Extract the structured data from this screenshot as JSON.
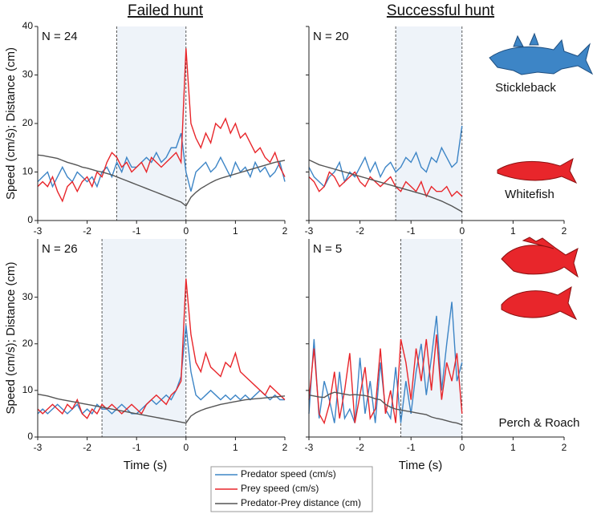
{
  "chart_data": [
    {
      "type": "line",
      "title": "Failed hunt",
      "ylabel": "Speed (cm/s); Distance (cm)",
      "annotation": "N = 24",
      "event_start": -1.4,
      "event_end": 0,
      "xlim": [
        -3,
        2
      ],
      "xticks": [
        -3,
        -2,
        -1,
        0,
        1,
        2
      ],
      "ylim": [
        0,
        40
      ],
      "yticks": [
        0,
        10,
        20,
        30,
        40
      ],
      "ytick_labels": true,
      "x": [
        -3,
        -2.9,
        -2.8,
        -2.7,
        -2.6,
        -2.5,
        -2.4,
        -2.3,
        -2.2,
        -2.1,
        -2,
        -1.9,
        -1.8,
        -1.7,
        -1.6,
        -1.5,
        -1.4,
        -1.3,
        -1.2,
        -1.1,
        -1,
        -0.9,
        -0.8,
        -0.7,
        -0.6,
        -0.5,
        -0.4,
        -0.3,
        -0.2,
        -0.1,
        0,
        0.1,
        0.2,
        0.3,
        0.4,
        0.5,
        0.6,
        0.7,
        0.8,
        0.9,
        1,
        1.1,
        1.2,
        1.3,
        1.4,
        1.5,
        1.6,
        1.7,
        1.8,
        1.9,
        2
      ],
      "series": [
        {
          "name": "Predator speed (cm/s)",
          "color": "#3d85c6",
          "values": [
            8,
            9,
            10,
            7,
            9,
            11,
            9,
            8,
            10,
            9,
            8,
            9,
            7,
            10,
            11,
            9,
            12,
            10,
            13,
            11,
            11,
            12,
            13,
            12,
            14,
            12,
            13,
            15,
            15,
            18,
            10,
            6,
            10,
            11,
            12,
            10,
            11,
            13,
            11,
            9,
            12,
            10,
            11,
            9,
            12,
            10,
            11,
            9,
            10,
            12,
            8
          ]
        },
        {
          "name": "Prey speed (cm/s)",
          "color": "#e8262b",
          "values": [
            7,
            8,
            7,
            9,
            6,
            4,
            7,
            8,
            6,
            8,
            9,
            7,
            10,
            9,
            12,
            14,
            13,
            11,
            12,
            10,
            11,
            12,
            10,
            13,
            12,
            11,
            12,
            13,
            14,
            12,
            35.5,
            20,
            17,
            15,
            18,
            16,
            20,
            19,
            21,
            18,
            20,
            17,
            18,
            16,
            14,
            15,
            13,
            12,
            14,
            11,
            9
          ]
        },
        {
          "name": "Predator-Prey distance (cm)",
          "color": "#555555",
          "values": [
            13.5,
            13.4,
            13.2,
            13,
            12.8,
            12.4,
            12,
            11.7,
            11.4,
            11,
            10.8,
            10.5,
            10.2,
            10,
            9.7,
            9.4,
            9,
            8.6,
            8.2,
            7.8,
            7.4,
            7,
            6.6,
            6.2,
            5.8,
            5.4,
            5,
            4.6,
            4.2,
            3.8,
            3,
            4.8,
            5.8,
            6.6,
            7.2,
            7.8,
            8.3,
            8.7,
            9,
            9.3,
            9.6,
            9.9,
            10.2,
            10.5,
            10.8,
            11.1,
            11.4,
            11.7,
            12,
            12.2,
            12.4
          ]
        }
      ]
    },
    {
      "type": "line",
      "title": "Successful hunt",
      "annotation": "N = 20",
      "side_labels": [
        "Stickleback",
        "Whitefish"
      ],
      "event_start": -1.3,
      "event_end": 0,
      "xlim": [
        -3,
        2
      ],
      "xticks": [
        -3,
        -2,
        -1,
        0,
        1,
        2
      ],
      "ylim": [
        0,
        40
      ],
      "yticks": [
        0,
        10,
        20,
        30,
        40
      ],
      "ytick_labels": false,
      "x": [
        -3,
        -2.9,
        -2.8,
        -2.7,
        -2.6,
        -2.5,
        -2.4,
        -2.3,
        -2.2,
        -2.1,
        -2,
        -1.9,
        -1.8,
        -1.7,
        -1.6,
        -1.5,
        -1.4,
        -1.3,
        -1.2,
        -1.1,
        -1,
        -0.9,
        -0.8,
        -0.7,
        -0.6,
        -0.5,
        -0.4,
        -0.3,
        -0.2,
        -0.1,
        0
      ],
      "series": [
        {
          "color": "#3d85c6",
          "values": [
            11,
            9,
            8,
            7,
            9,
            10,
            12,
            8,
            10,
            9,
            11,
            13,
            10,
            12,
            9,
            11,
            12,
            10,
            11,
            13,
            12,
            14,
            11,
            10,
            13,
            12,
            15,
            13,
            11,
            12,
            19.5
          ]
        },
        {
          "color": "#e8262b",
          "values": [
            9,
            8,
            6,
            7,
            10,
            9,
            7,
            8,
            9,
            10,
            8,
            7,
            9,
            8,
            7,
            8,
            9,
            7,
            6,
            8,
            7,
            6,
            8,
            5,
            7,
            6,
            6,
            7,
            5,
            6,
            5
          ]
        },
        {
          "color": "#555555",
          "values": [
            12.5,
            12,
            11.5,
            11.2,
            10.9,
            10.6,
            10.3,
            10,
            9.7,
            9.4,
            9.1,
            8.8,
            8.5,
            8.2,
            7.9,
            7.6,
            7.3,
            7,
            6.7,
            6.4,
            6.1,
            5.8,
            5.5,
            5.2,
            4.8,
            4.4,
            4,
            3.5,
            3,
            2.4,
            1.8
          ]
        }
      ]
    },
    {
      "type": "line",
      "ylabel": "Speed (cm/s); Distance (cm)",
      "xlabel": "Time (s)",
      "annotation": "N = 26",
      "event_start": -1.7,
      "event_end": 0,
      "xlim": [
        -3,
        2
      ],
      "xticks": [
        -3,
        -2,
        -1,
        0,
        1,
        2
      ],
      "ylim": [
        0,
        42.5
      ],
      "yticks": [
        0,
        10,
        20,
        30
      ],
      "ytick_labels": true,
      "x": [
        -3,
        -2.9,
        -2.8,
        -2.7,
        -2.6,
        -2.5,
        -2.4,
        -2.3,
        -2.2,
        -2.1,
        -2,
        -1.9,
        -1.8,
        -1.7,
        -1.6,
        -1.5,
        -1.4,
        -1.3,
        -1.2,
        -1.1,
        -1,
        -0.9,
        -0.8,
        -0.7,
        -0.6,
        -0.5,
        -0.4,
        -0.3,
        -0.2,
        -0.1,
        0,
        0.1,
        0.2,
        0.3,
        0.4,
        0.5,
        0.6,
        0.7,
        0.8,
        0.9,
        1,
        1.1,
        1.2,
        1.3,
        1.4,
        1.5,
        1.6,
        1.7,
        1.8,
        1.9,
        2
      ],
      "series": [
        {
          "color": "#3d85c6",
          "values": [
            5,
            6,
            5,
            6,
            7,
            6,
            5,
            6,
            7,
            5,
            6,
            5,
            7,
            6,
            6,
            5,
            6,
            7,
            6,
            5,
            5,
            6,
            7,
            8,
            7,
            8,
            9,
            8,
            10,
            13,
            24,
            14,
            9,
            8,
            9,
            10,
            9,
            8,
            9,
            8,
            9,
            8,
            9,
            8,
            9,
            10,
            9,
            8,
            9,
            8,
            8
          ]
        },
        {
          "color": "#e8262b",
          "values": [
            6,
            5,
            6,
            7,
            6,
            5,
            7,
            6,
            8,
            5,
            4,
            6,
            5,
            7,
            6,
            7,
            6,
            5,
            6,
            7,
            6,
            5,
            7,
            8,
            9,
            8,
            7,
            9,
            10,
            12,
            34,
            22,
            16,
            14,
            18,
            15,
            14,
            13,
            16,
            15,
            18,
            14,
            13,
            12,
            11,
            10,
            9,
            11,
            10,
            9,
            8
          ]
        },
        {
          "color": "#555555",
          "values": [
            9.2,
            9,
            8.8,
            8.5,
            8.2,
            8,
            7.8,
            7.6,
            7.4,
            7.2,
            7,
            6.8,
            6.6,
            6.4,
            6.2,
            6,
            5.8,
            5.6,
            5.4,
            5.2,
            5,
            4.8,
            4.6,
            4.4,
            4.2,
            4,
            3.8,
            3.6,
            3.4,
            3.2,
            3,
            4.5,
            5.2,
            5.7,
            6.1,
            6.4,
            6.7,
            7,
            7.2,
            7.4,
            7.6,
            7.8,
            8,
            8.1,
            8.2,
            8.3,
            8.4,
            8.5,
            8.6,
            8.7,
            8.8
          ]
        }
      ]
    },
    {
      "type": "line",
      "xlabel": "Time (s)",
      "annotation": "N = 5",
      "side_labels": [
        "Perch & Roach"
      ],
      "event_start": -1.2,
      "event_end": 0,
      "xlim": [
        -3,
        2
      ],
      "xticks": [
        -3,
        -2,
        -1,
        0,
        1,
        2
      ],
      "ylim": [
        0,
        42.5
      ],
      "yticks": [
        0,
        10,
        20,
        30
      ],
      "ytick_labels": false,
      "x": [
        -3,
        -2.9,
        -2.8,
        -2.7,
        -2.6,
        -2.5,
        -2.4,
        -2.3,
        -2.2,
        -2.1,
        -2,
        -1.9,
        -1.8,
        -1.7,
        -1.6,
        -1.5,
        -1.4,
        -1.3,
        -1.2,
        -1.1,
        -1,
        -0.9,
        -0.8,
        -0.7,
        -0.6,
        -0.5,
        -0.4,
        -0.3,
        -0.2,
        -0.1,
        0
      ],
      "series": [
        {
          "color": "#3d85c6",
          "values": [
            5,
            21,
            4,
            12,
            8,
            3,
            14,
            4,
            6,
            3,
            17,
            5,
            12,
            3,
            16,
            6,
            4,
            15,
            3,
            12,
            5,
            14,
            20,
            9,
            17,
            26,
            10,
            20,
            29,
            12,
            16
          ]
        },
        {
          "color": "#e8262b",
          "values": [
            8,
            19,
            5,
            3,
            7,
            14,
            4,
            10,
            18,
            3,
            9,
            15,
            4,
            6,
            19,
            5,
            10,
            3,
            21,
            16,
            8,
            19,
            12,
            21,
            10,
            22,
            8,
            16,
            12,
            18,
            5
          ]
        },
        {
          "color": "#555555",
          "values": [
            9,
            8.8,
            8.6,
            8.5,
            9.2,
            9.6,
            9.4,
            9.2,
            9,
            9.1,
            9,
            8.9,
            8.6,
            8.2,
            8,
            7,
            6.4,
            6,
            5.8,
            5.6,
            5.4,
            5.2,
            5,
            4.8,
            4.3,
            4,
            3.8,
            3.5,
            3.2,
            3,
            2.6
          ]
        }
      ]
    }
  ]
}
